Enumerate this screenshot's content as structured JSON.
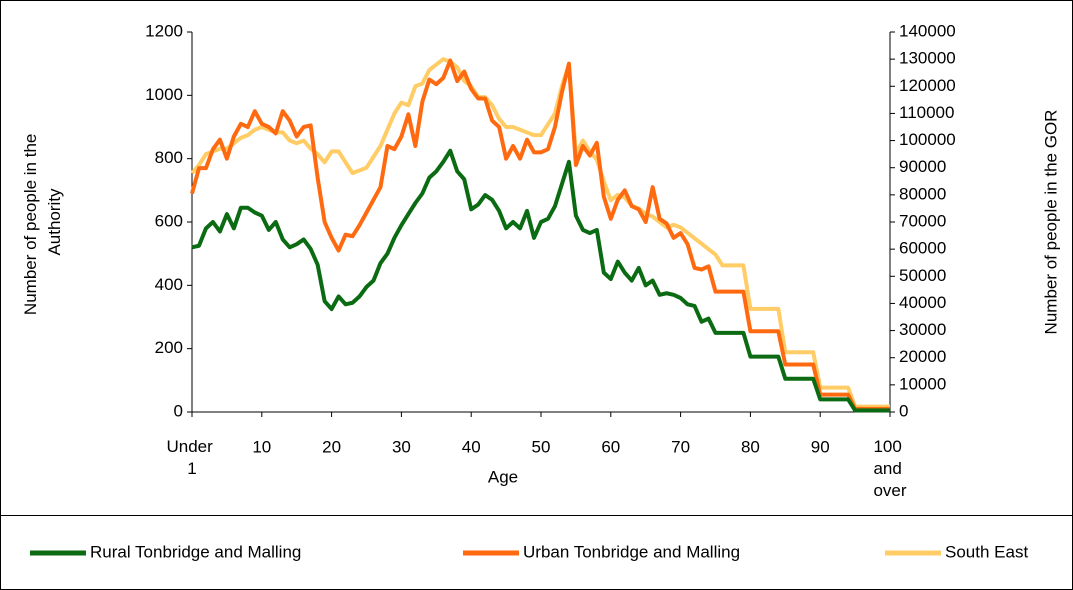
{
  "chart_data": {
    "type": "line",
    "x_label": "Age",
    "y_label": "Number of people in the Authority",
    "y2_label": "Number of people in the GOR",
    "categories": [
      "Under 1",
      null,
      null,
      null,
      null,
      null,
      null,
      null,
      null,
      null,
      "10",
      null,
      null,
      null,
      null,
      null,
      null,
      null,
      null,
      null,
      "20",
      null,
      null,
      null,
      null,
      null,
      null,
      null,
      null,
      null,
      "30",
      null,
      null,
      null,
      null,
      null,
      null,
      null,
      null,
      null,
      "40",
      null,
      null,
      null,
      null,
      null,
      null,
      null,
      null,
      null,
      "50",
      null,
      null,
      null,
      null,
      null,
      null,
      null,
      null,
      null,
      "60",
      null,
      null,
      null,
      null,
      null,
      null,
      null,
      null,
      null,
      "70",
      null,
      null,
      null,
      null,
      null,
      null,
      null,
      null,
      null,
      "80",
      null,
      null,
      null,
      null,
      null,
      null,
      null,
      null,
      null,
      "90",
      null,
      null,
      null,
      null,
      null,
      null,
      null,
      null,
      null,
      "100 and over"
    ],
    "ylim": [
      0,
      1200
    ],
    "yticks": [
      0,
      200,
      400,
      600,
      800,
      1000,
      1200
    ],
    "y2lim": [
      0,
      140000
    ],
    "y2ticks": [
      0,
      10000,
      20000,
      30000,
      40000,
      50000,
      60000,
      70000,
      80000,
      90000,
      100000,
      110000,
      120000,
      130000,
      140000
    ],
    "grid": false,
    "legend": "bottom",
    "series": [
      {
        "name": "Rural Tonbridge and Malling",
        "color": "#0b6b13",
        "values": [
          520,
          525,
          580,
          600,
          570,
          625,
          580,
          645,
          645,
          630,
          620,
          575,
          600,
          545,
          520,
          530,
          545,
          515,
          465,
          350,
          325,
          365,
          340,
          345,
          365,
          395,
          415,
          470,
          500,
          550,
          590,
          625,
          660,
          690,
          740,
          760,
          790,
          825,
          760,
          735,
          640,
          655,
          685,
          670,
          635,
          580,
          600,
          580,
          635,
          550,
          600,
          610,
          650,
          720,
          790,
          620,
          575,
          565,
          575,
          440,
          420,
          475,
          440,
          415,
          455,
          400,
          415,
          370,
          375,
          370,
          360,
          340,
          335,
          285,
          295,
          250,
          250,
          250,
          250,
          250,
          175,
          175,
          175,
          175,
          175,
          105,
          105,
          105,
          105,
          105,
          40,
          40,
          40,
          40,
          40,
          5,
          5,
          5,
          5,
          5,
          5
        ]
      },
      {
        "name": "Urban Tonbridge and Malling",
        "color": "#ff6a10",
        "values": [
          690,
          770,
          770,
          830,
          860,
          800,
          870,
          910,
          900,
          950,
          910,
          900,
          880,
          950,
          920,
          870,
          900,
          905,
          740,
          600,
          550,
          510,
          560,
          555,
          590,
          630,
          670,
          710,
          840,
          830,
          870,
          940,
          840,
          980,
          1050,
          1035,
          1055,
          1110,
          1045,
          1075,
          1020,
          990,
          990,
          920,
          900,
          800,
          840,
          800,
          860,
          820,
          820,
          830,
          900,
          1010,
          1100,
          780,
          840,
          810,
          850,
          680,
          610,
          670,
          700,
          650,
          640,
          600,
          710,
          610,
          595,
          550,
          565,
          530,
          455,
          450,
          460,
          380,
          380,
          380,
          380,
          380,
          255,
          255,
          255,
          255,
          255,
          150,
          150,
          150,
          150,
          150,
          55,
          55,
          55,
          55,
          55,
          10,
          10,
          10,
          10,
          10,
          10
        ]
      },
      {
        "name": "South East",
        "color": "#ffcc66",
        "axis": "y2",
        "values": [
          88000,
          91000,
          95000,
          96000,
          97000,
          97000,
          99000,
          101000,
          102000,
          104000,
          105000,
          104000,
          103000,
          103000,
          100000,
          99000,
          100000,
          97000,
          95000,
          92000,
          96000,
          96000,
          92000,
          88000,
          89000,
          90000,
          94000,
          98000,
          104000,
          110000,
          114000,
          113000,
          120000,
          121000,
          126000,
          128000,
          130000,
          129000,
          127000,
          122000,
          120000,
          116000,
          116000,
          113000,
          108000,
          105000,
          105000,
          104000,
          103000,
          102000,
          102000,
          106000,
          110000,
          120000,
          128000,
          95000,
          100000,
          96000,
          93000,
          85000,
          78000,
          80000,
          79000,
          76000,
          75000,
          73000,
          72000,
          70000,
          68000,
          69000,
          68000,
          66000,
          64000,
          62000,
          60000,
          58000,
          54000,
          54000,
          54000,
          54000,
          38000,
          38000,
          38000,
          38000,
          38000,
          22000,
          22000,
          22000,
          22000,
          22000,
          9000,
          9000,
          9000,
          9000,
          9000,
          2000,
          2000,
          2000,
          2000,
          2000,
          2000
        ]
      }
    ]
  }
}
